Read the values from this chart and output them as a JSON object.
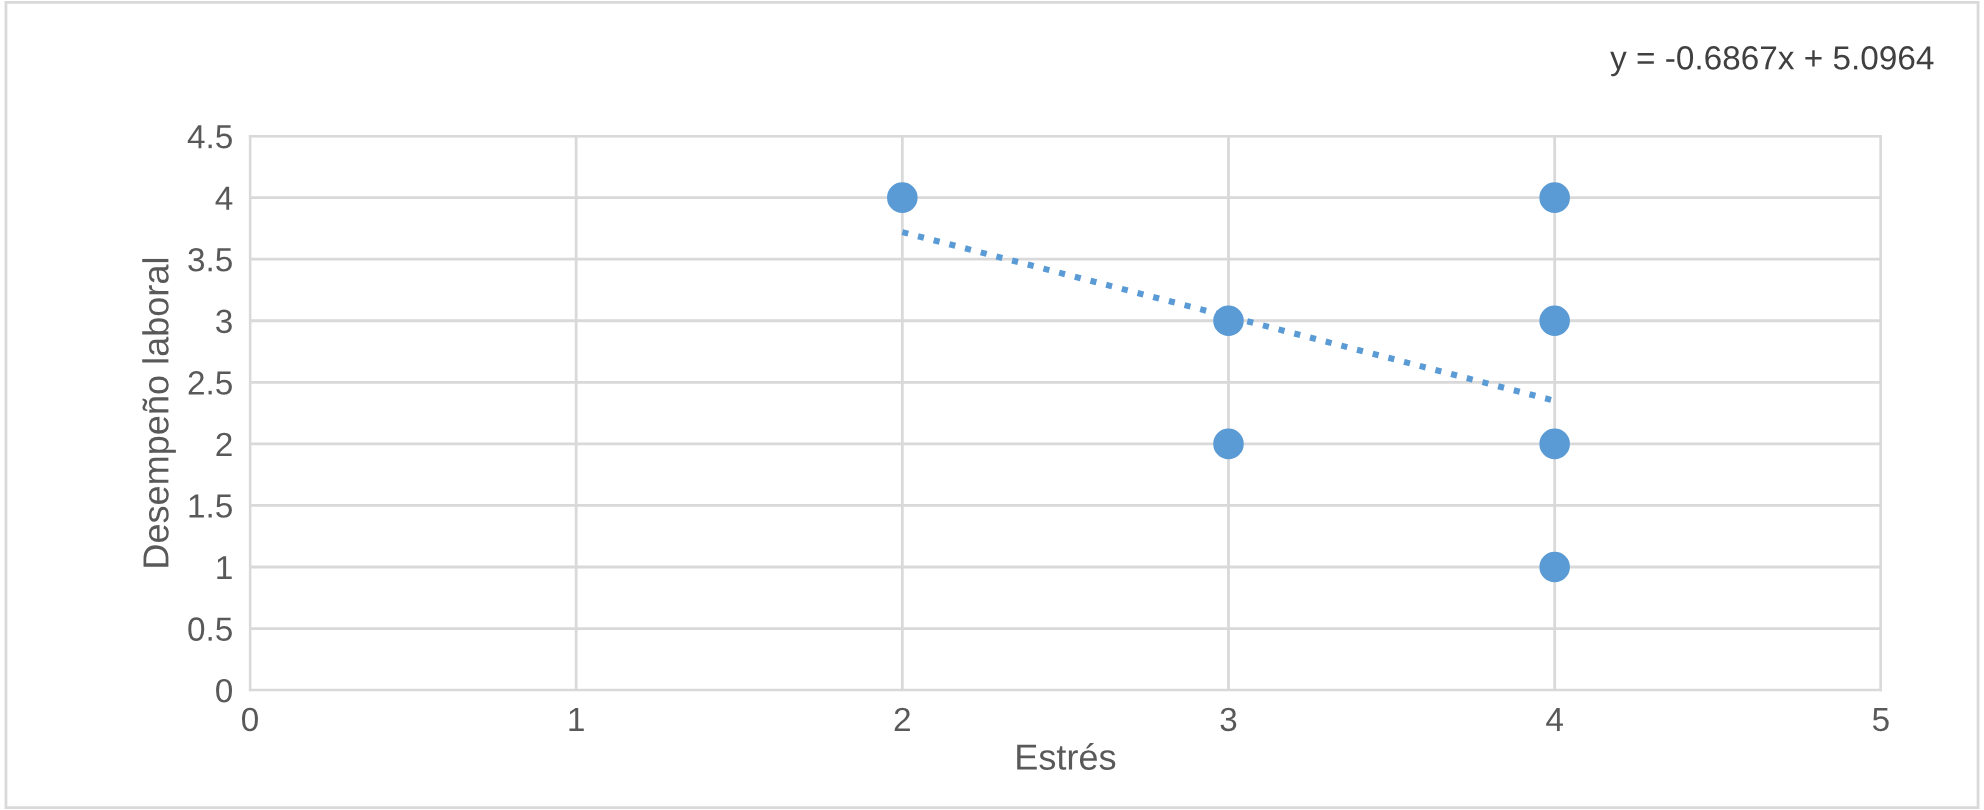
{
  "chart_data": {
    "type": "scatter",
    "xlabel": "Estrés",
    "ylabel": "Desempeño laboral",
    "annotations": [
      "y = -0.6867x + 5.0964"
    ],
    "series": [
      {
        "color": "#5b9bd5",
        "marker": "circle",
        "x": [
          2,
          3,
          3,
          4,
          4,
          4,
          4
        ],
        "values": [
          4,
          3,
          2,
          4,
          3,
          2,
          1
        ]
      },
      {
        "type": "line",
        "color": "#5b9bd5",
        "line_style": "dotted",
        "marker": "none",
        "x": [
          2,
          4
        ],
        "values": [
          3.72,
          2.35
        ]
      }
    ],
    "xlim": [
      0,
      5
    ],
    "xticks": [
      0,
      1,
      2,
      3,
      4,
      5
    ],
    "ylim": [
      0,
      4.5
    ],
    "yticks": [
      0,
      0.5,
      1,
      1.5,
      2,
      2.5,
      3,
      3.5,
      4,
      4.5
    ],
    "grid": true,
    "legend": false
  }
}
